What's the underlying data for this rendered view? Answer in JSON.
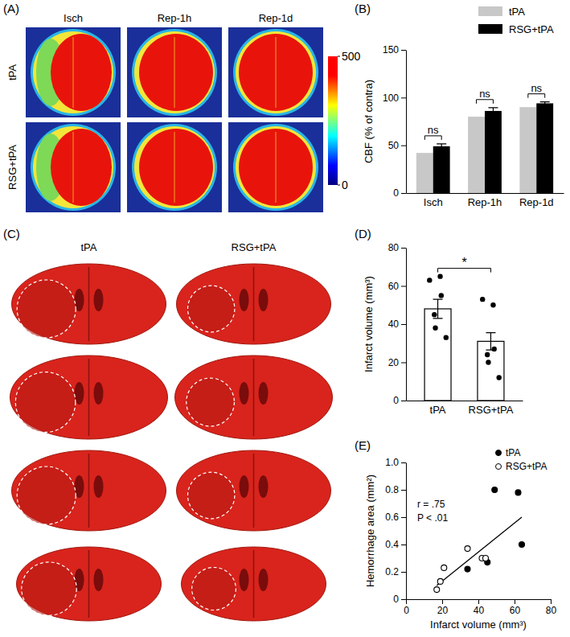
{
  "chart_data": [
    {
      "type": "image_grid",
      "title": "(A)",
      "columns": [
        "Isch",
        "Rep-1h",
        "Rep-1d"
      ],
      "rows": [
        "tPA",
        "RSG+tPA"
      ],
      "color_range": [
        0,
        500
      ],
      "color_ticks": [
        0,
        500
      ]
    },
    {
      "type": "bar",
      "title": "(B)",
      "categories": [
        "Isch",
        "Rep-1h",
        "Rep-1d"
      ],
      "series": [
        {
          "name": "tPA",
          "color": "#c8c8c8",
          "values": [
            42,
            80,
            90
          ]
        },
        {
          "name": "RSG+tPA",
          "color": "#000000",
          "values": [
            49,
            86,
            94
          ],
          "errors": [
            2.5,
            3.5,
            1.5
          ]
        }
      ],
      "ylabel": "CBF (% of contra)",
      "ylim": [
        0,
        150
      ],
      "yticks": [
        0,
        50,
        100,
        150
      ],
      "legend": "top",
      "annotations": [
        "ns",
        "ns",
        "ns"
      ]
    },
    {
      "type": "section_grid",
      "title": "(C)",
      "columns": [
        "tPA",
        "RSG+tPA"
      ]
    },
    {
      "type": "bar",
      "title": "(D)",
      "categories": [
        "tPA",
        "RSG+tPA"
      ],
      "values": [
        48,
        31
      ],
      "errors": [
        5,
        4.5
      ],
      "points": [
        [
          63,
          65,
          55,
          45,
          38,
          33
        ],
        [
          53,
          50,
          27,
          24,
          20,
          12
        ]
      ],
      "color": "#ffffff",
      "ylabel": "Infarct volume (mm³)",
      "ylim": [
        0,
        80
      ],
      "yticks": [
        0,
        20,
        40,
        60,
        80
      ],
      "annotations": [
        "*"
      ]
    },
    {
      "type": "scatter",
      "title": "(E)",
      "series": [
        {
          "name": "tPA",
          "color": "#000000",
          "marker": "circle",
          "x": [
            34,
            45,
            49,
            62,
            64
          ],
          "values": [
            0.22,
            0.27,
            0.8,
            0.78,
            0.4
          ]
        },
        {
          "name": "RSG+tPA",
          "color": "#000000",
          "marker": "open_circle",
          "x": [
            17,
            19,
            21,
            34,
            42,
            44
          ],
          "values": [
            0.07,
            0.13,
            0.23,
            0.37,
            0.3,
            0.3
          ]
        }
      ],
      "fit": {
        "x": [
          17,
          64
        ],
        "values": [
          0.1,
          0.6
        ]
      },
      "xlabel": "Infarct volume (mm³)",
      "ylabel": "Hemorrhage area (mm²)",
      "xlim": [
        0,
        80
      ],
      "xticks": [
        0,
        20,
        40,
        60,
        80
      ],
      "ylim": [
        0,
        1
      ],
      "yticks": [
        0,
        0.2,
        0.4,
        0.6,
        0.8,
        {
          "value": 1,
          "label": "1.0"
        }
      ],
      "legend": "top-right",
      "annotations": [
        "r = .75",
        "P < .01"
      ]
    }
  ]
}
